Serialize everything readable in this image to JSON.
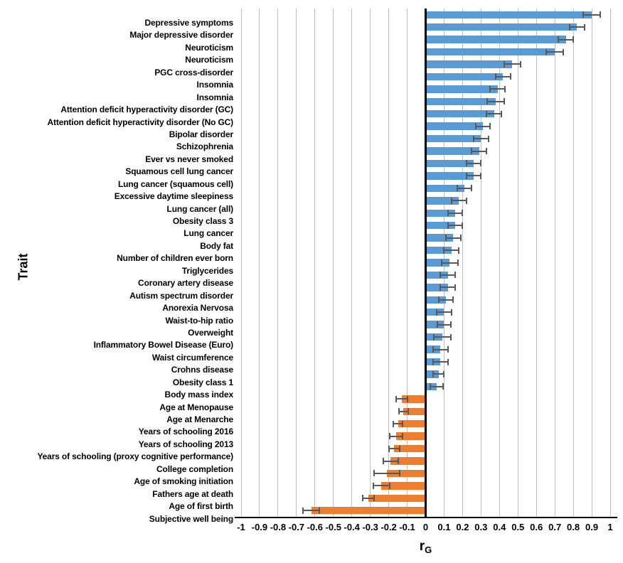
{
  "figure": {
    "ylabel": "Trait",
    "xlabel_main": "r",
    "xlabel_sub": "G"
  },
  "chart_data": {
    "type": "bar",
    "orientation": "horizontal",
    "title": "",
    "xlabel": "rG",
    "ylabel": "Trait",
    "xlim": [
      -1,
      1
    ],
    "grid": true,
    "legend": false,
    "x_tick_labels": [
      "-1",
      "-0.9",
      "-0.8",
      "-0.7",
      "-0.6",
      "-0.5",
      "-0.4",
      "-0.3",
      "-0.2",
      "-0.1",
      "0",
      "0.1",
      "0.2",
      "0.3",
      "0.4",
      "0.5",
      "0.6",
      "0.7",
      "0.8",
      "0.9",
      "1"
    ],
    "x_ticks": [
      -1,
      -0.9,
      -0.8,
      -0.7,
      -0.6,
      -0.5,
      -0.4,
      -0.3,
      -0.2,
      -0.1,
      0,
      0.1,
      0.2,
      0.3,
      0.4,
      0.5,
      0.6,
      0.7,
      0.8,
      0.9,
      1
    ],
    "bar_colors": {
      "positive": "#5B9BD5",
      "negative": "#ED7D31"
    },
    "error_bar_color": "#595959",
    "gridline_color": "#BFBFBF",
    "categories": [
      "Depressive symptoms",
      "Major depressive disorder",
      "Neuroticism",
      "Neuroticism",
      "PGC cross-disorder",
      "Insomnia",
      "Insomnia",
      "Attention deficit hyperactivity disorder (GC)",
      "Attention deficit hyperactivity disorder (No GC)",
      "Bipolar disorder",
      "Schizophrenia",
      "Ever vs never smoked",
      "Squamous cell lung cancer",
      "Lung cancer (squamous cell)",
      "Excessive daytime sleepiness",
      "Lung cancer (all)",
      "Obesity class 3",
      "Lung cancer",
      "Body fat",
      "Number of children ever born",
      "Triglycerides",
      "Coronary artery disease",
      "Autism spectrum disorder",
      "Anorexia Nervosa",
      "Waist-to-hip ratio",
      "Overweight",
      "Inflammatory Bowel Disease (Euro)",
      "Waist circumference",
      "Crohns disease",
      "Obesity class 1",
      "Body mass index",
      "Age at Menopause",
      "Age at Menarche",
      "Years of schooling 2016",
      "Years of schooling 2013",
      "Years of schooling (proxy cognitive performance)",
      "College completion",
      "Age of smoking initiation",
      "Fathers age at death",
      "Age of first birth",
      "Subjective well being"
    ],
    "series": [
      {
        "name": "rG",
        "values": [
          0.9,
          0.82,
          0.76,
          0.7,
          0.47,
          0.42,
          0.39,
          0.38,
          0.37,
          0.31,
          0.3,
          0.29,
          0.26,
          0.26,
          0.21,
          0.18,
          0.16,
          0.16,
          0.15,
          0.14,
          0.13,
          0.12,
          0.12,
          0.11,
          0.1,
          0.1,
          0.09,
          0.08,
          0.08,
          0.07,
          0.06,
          -0.13,
          -0.12,
          -0.15,
          -0.16,
          -0.17,
          -0.19,
          -0.21,
          -0.24,
          -0.31,
          -0.62
        ],
        "errors": [
          0.045,
          0.04,
          0.04,
          0.045,
          0.045,
          0.04,
          0.04,
          0.045,
          0.04,
          0.04,
          0.04,
          0.04,
          0.04,
          0.04,
          0.04,
          0.04,
          0.04,
          0.04,
          0.04,
          0.04,
          0.045,
          0.04,
          0.04,
          0.04,
          0.04,
          0.035,
          0.045,
          0.04,
          0.04,
          0.03,
          0.035,
          0.03,
          0.025,
          0.025,
          0.035,
          0.03,
          0.04,
          0.07,
          0.045,
          0.03,
          0.045
        ]
      }
    ]
  }
}
